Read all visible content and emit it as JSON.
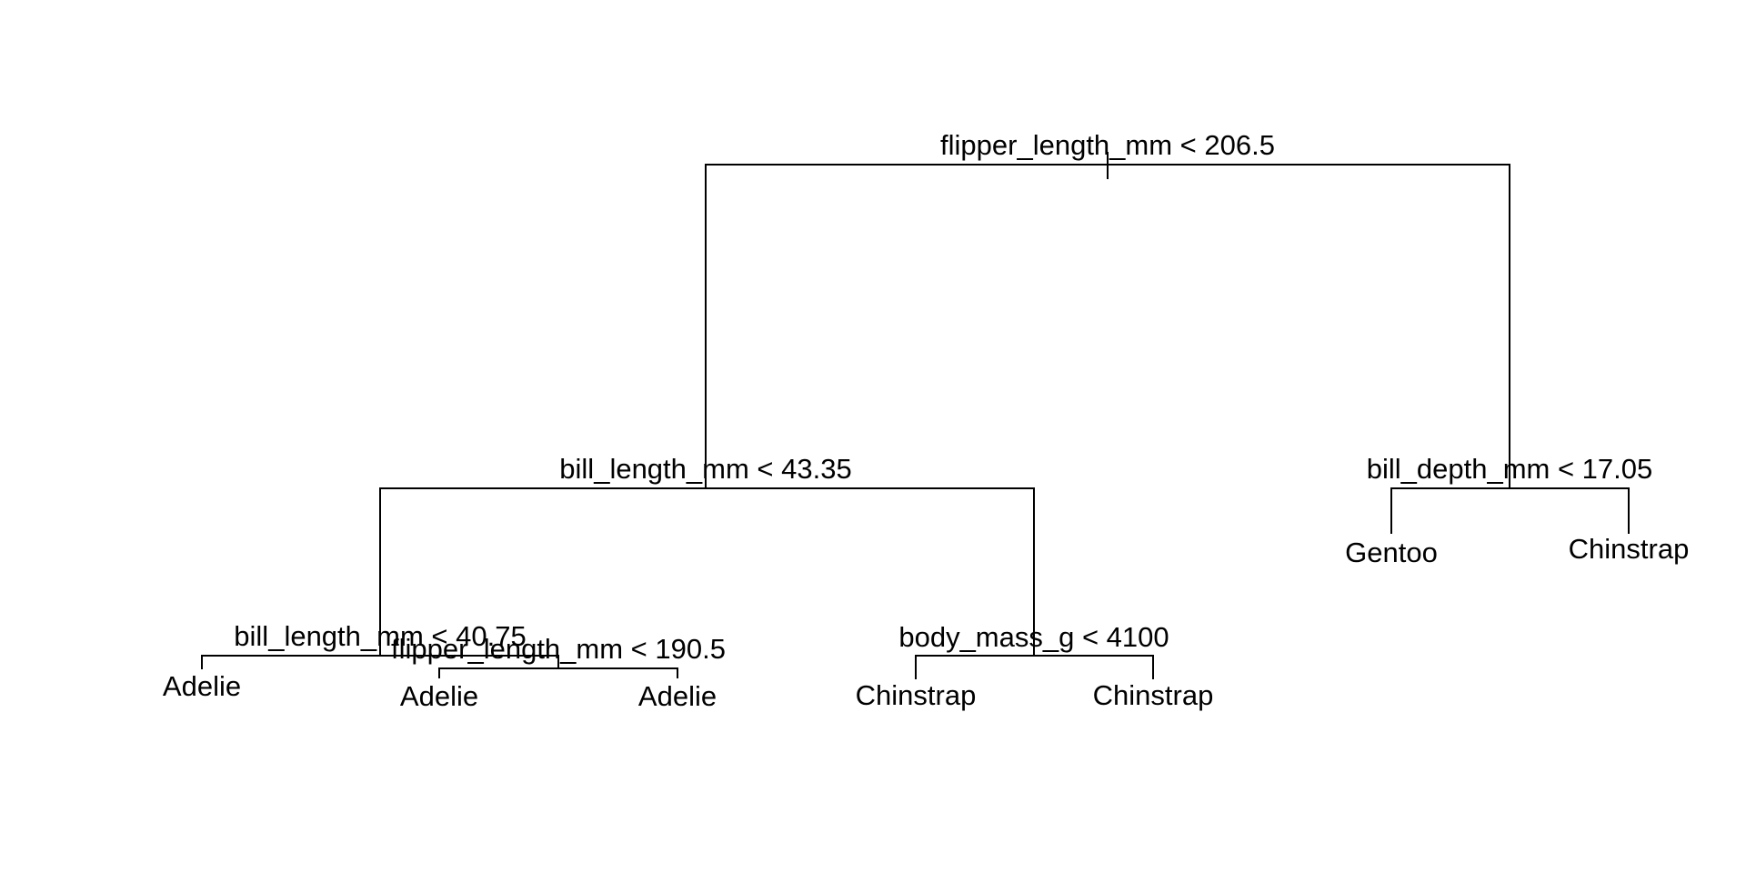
{
  "tree": {
    "root": {
      "label": "flipper_length_mm < 206.5",
      "left": {
        "label": "bill_length_mm < 43.35",
        "left": {
          "label": "bill_length_mm < 40.75",
          "left": {
            "leaf": "Adelie"
          },
          "right": {
            "label": "flipper_length_mm < 190.5",
            "left": {
              "leaf": "Adelie"
            },
            "right": {
              "leaf": "Adelie"
            }
          }
        },
        "right": {
          "label": "body_mass_g < 4100",
          "left": {
            "leaf": "Chinstrap"
          },
          "right": {
            "leaf": "Chinstrap"
          }
        }
      },
      "right": {
        "label": "bill_depth_mm < 17.05",
        "left": {
          "leaf": "Gentoo"
        },
        "right": {
          "leaf": "Chinstrap"
        }
      }
    }
  }
}
